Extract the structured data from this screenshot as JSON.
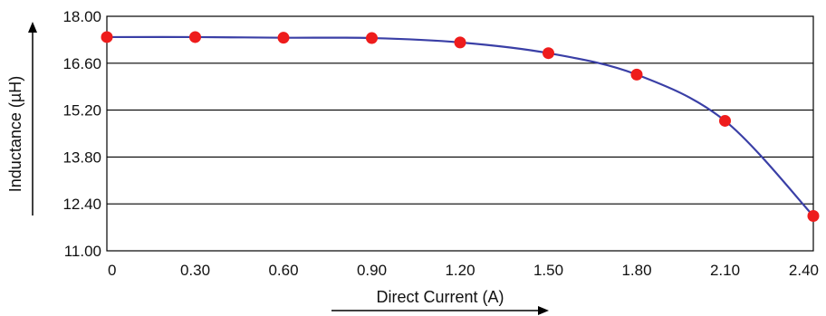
{
  "chart_data": {
    "type": "line",
    "title": "",
    "xlabel": "Direct Current (A)",
    "ylabel": "Inductance (µH)",
    "x": [
      0,
      0.3,
      0.6,
      0.9,
      1.2,
      1.5,
      1.8,
      2.1,
      2.4
    ],
    "x_tick_labels": [
      "0",
      "0.30",
      "0.60",
      "0.90",
      "1.20",
      "1.50",
      "1.80",
      "2.10",
      "2.40"
    ],
    "y_tick_labels": [
      "18.00",
      "16.60",
      "15.20",
      "13.80",
      "12.40",
      "11.00"
    ],
    "ylim": [
      11.0,
      18.0
    ],
    "xlim": [
      0,
      2.4
    ],
    "series": [
      {
        "values": [
          17.38,
          17.38,
          17.36,
          17.35,
          17.22,
          16.9,
          16.26,
          14.88,
          12.04
        ]
      }
    ],
    "grid": "horizontal",
    "colors": {
      "line": "#3a3fa6",
      "marker": "#ee1c1c",
      "grid": "#000000"
    }
  }
}
